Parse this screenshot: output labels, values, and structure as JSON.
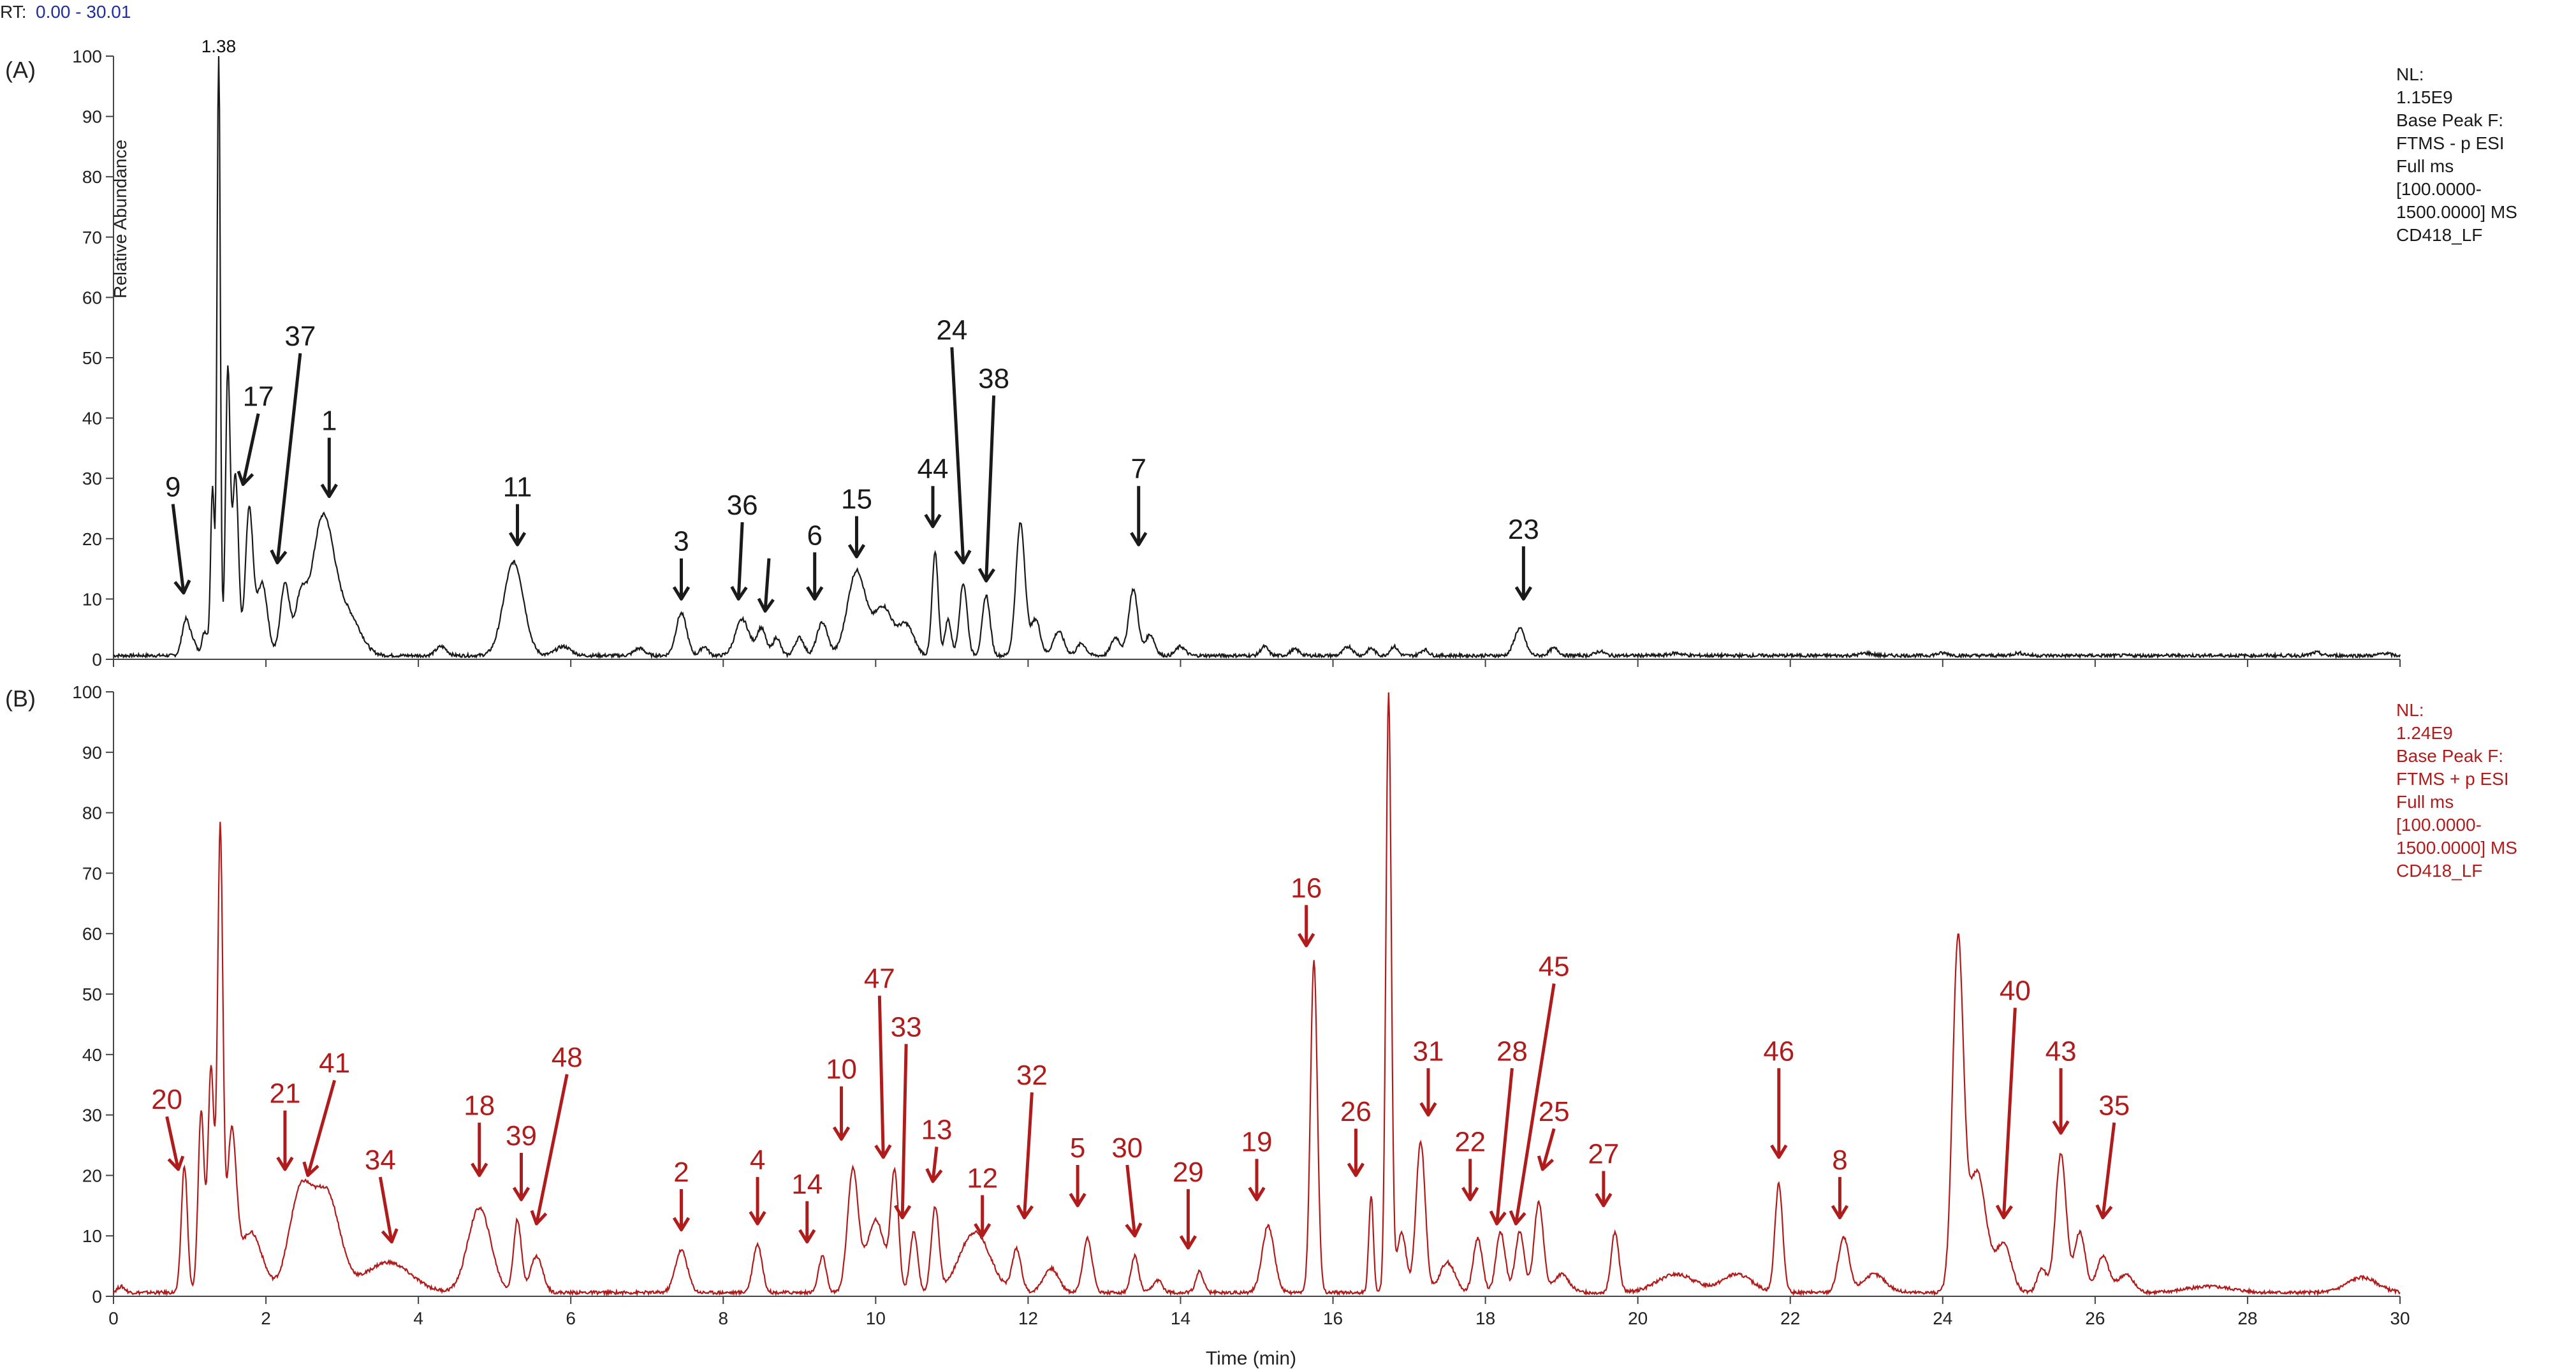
{
  "rt_prefix": "RT:",
  "rt_range": "0.00 - 30.01",
  "xlabel": "Time (min)",
  "ylabel": "Relative Abundance",
  "colors": {
    "a": "#1a1a1a",
    "b": "#b01c1c",
    "rt_range": "#1f2f9e"
  },
  "chart_data": [
    {
      "type": "line",
      "panel": "(A)",
      "xlim": [
        0,
        30
      ],
      "ylim": [
        0,
        100
      ],
      "xticks": [
        0,
        2,
        4,
        6,
        8,
        10,
        12,
        14,
        16,
        18,
        20,
        22,
        24,
        26,
        28,
        30
      ],
      "yticks": [
        0,
        10,
        20,
        30,
        40,
        50,
        60,
        70,
        80,
        90,
        100
      ],
      "base_peak_label": "1.38",
      "info": [
        "NL:",
        "1.15E9",
        "Base Peak F:",
        "FTMS - p ESI",
        "Full ms",
        "[100.0000-",
        "1500.0000]  MS",
        "CD418_LF"
      ],
      "peaks": [
        [
          0.95,
          6,
          0.05
        ],
        [
          1.05,
          2,
          0.04
        ],
        [
          1.2,
          4,
          0.04
        ],
        [
          1.3,
          28,
          0.025
        ],
        [
          1.38,
          100,
          0.022
        ],
        [
          1.5,
          47,
          0.03
        ],
        [
          1.6,
          30,
          0.04
        ],
        [
          1.78,
          24,
          0.05
        ],
        [
          1.95,
          12,
          0.07
        ],
        [
          2.25,
          12,
          0.06
        ],
        [
          2.45,
          8,
          0.07
        ],
        [
          2.75,
          23,
          0.15
        ],
        [
          3.1,
          6,
          0.15
        ],
        [
          4.3,
          1.5,
          0.07
        ],
        [
          5.25,
          15.5,
          0.13
        ],
        [
          5.9,
          1.5,
          0.1
        ],
        [
          6.9,
          1.2,
          0.07
        ],
        [
          7.45,
          7,
          0.07
        ],
        [
          7.75,
          1.5,
          0.05
        ],
        [
          8.25,
          6,
          0.09
        ],
        [
          8.5,
          4.5,
          0.06
        ],
        [
          8.7,
          3,
          0.05
        ],
        [
          9.0,
          3,
          0.06
        ],
        [
          9.3,
          5.5,
          0.07
        ],
        [
          9.75,
          14,
          0.12
        ],
        [
          10.1,
          8,
          0.12
        ],
        [
          10.4,
          5,
          0.1
        ],
        [
          10.78,
          17,
          0.04
        ],
        [
          10.95,
          6,
          0.04
        ],
        [
          11.15,
          12,
          0.05
        ],
        [
          11.45,
          10,
          0.05
        ],
        [
          11.9,
          22,
          0.06
        ],
        [
          12.1,
          6,
          0.06
        ],
        [
          12.4,
          4,
          0.07
        ],
        [
          12.7,
          2,
          0.06
        ],
        [
          13.15,
          3,
          0.06
        ],
        [
          13.38,
          11,
          0.06
        ],
        [
          13.6,
          3.5,
          0.06
        ],
        [
          14.0,
          1.5,
          0.06
        ],
        [
          15.1,
          1.5,
          0.05
        ],
        [
          15.5,
          1,
          0.06
        ],
        [
          16.2,
          1.5,
          0.06
        ],
        [
          16.5,
          1.2,
          0.05
        ],
        [
          16.8,
          1.5,
          0.05
        ],
        [
          17.2,
          1,
          0.05
        ],
        [
          18.45,
          4.5,
          0.07
        ],
        [
          18.9,
          1.2,
          0.06
        ],
        [
          19.5,
          0.7,
          0.06
        ],
        [
          20.5,
          0.4,
          0.08
        ],
        [
          23.0,
          0.4,
          0.08
        ],
        [
          24.0,
          0.4,
          0.08
        ],
        [
          25.0,
          0.4,
          0.08
        ],
        [
          28.9,
          0.5,
          0.06
        ],
        [
          29.8,
          0.4,
          0.06
        ]
      ],
      "annotations": [
        {
          "label": "9",
          "tx": 0.78,
          "ty": 27,
          "ax": 0.92,
          "ay": 11
        },
        {
          "label": "17",
          "tx": 1.9,
          "ty": 42,
          "ax": 1.7,
          "ay": 29
        },
        {
          "label": "37",
          "tx": 2.45,
          "ty": 52,
          "ax": 2.15,
          "ay": 16
        },
        {
          "label": "1",
          "tx": 2.83,
          "ty": 38,
          "ax": 2.83,
          "ay": 27
        },
        {
          "label": "11",
          "tx": 5.3,
          "ty": 27,
          "ax": 5.3,
          "ay": 19
        },
        {
          "label": "3",
          "tx": 7.45,
          "ty": 18,
          "ax": 7.45,
          "ay": 10
        },
        {
          "label": "36",
          "tx": 8.25,
          "ty": 24,
          "ax": 8.2,
          "ay": 10
        },
        {
          "label": "",
          "tx": 8.6,
          "ty": 18,
          "ax": 8.55,
          "ay": 8
        },
        {
          "label": "6",
          "tx": 9.2,
          "ty": 19,
          "ax": 9.2,
          "ay": 10
        },
        {
          "label": "15",
          "tx": 9.75,
          "ty": 25,
          "ax": 9.75,
          "ay": 17
        },
        {
          "label": "44",
          "tx": 10.75,
          "ty": 30,
          "ax": 10.75,
          "ay": 22
        },
        {
          "label": "24",
          "tx": 11.0,
          "ty": 53,
          "ax": 11.15,
          "ay": 16
        },
        {
          "label": "38",
          "tx": 11.55,
          "ty": 45,
          "ax": 11.45,
          "ay": 13
        },
        {
          "label": "7",
          "tx": 13.45,
          "ty": 30,
          "ax": 13.45,
          "ay": 19
        },
        {
          "label": "23",
          "tx": 18.5,
          "ty": 20,
          "ax": 18.5,
          "ay": 10
        }
      ]
    },
    {
      "type": "line",
      "panel": "(B)",
      "xlim": [
        0,
        30
      ],
      "ylim": [
        0,
        100
      ],
      "xticks": [
        0,
        2,
        4,
        6,
        8,
        10,
        12,
        14,
        16,
        18,
        20,
        22,
        24,
        26,
        28,
        30
      ],
      "yticks": [
        0,
        10,
        20,
        30,
        40,
        50,
        60,
        70,
        80,
        90,
        100
      ],
      "info": [
        "NL:",
        "1.24E9",
        "Base Peak F:",
        "FTMS + p ESI",
        "Full ms",
        "[100.0000-",
        "1500.0000]  MS",
        "CD418_LF"
      ],
      "peaks": [
        [
          0.1,
          1,
          0.05
        ],
        [
          0.93,
          21,
          0.04
        ],
        [
          1.15,
          30,
          0.04
        ],
        [
          1.28,
          37,
          0.04
        ],
        [
          1.4,
          76,
          0.035
        ],
        [
          1.55,
          25,
          0.06
        ],
        [
          1.8,
          10,
          0.15
        ],
        [
          2.45,
          16,
          0.15
        ],
        [
          2.8,
          16,
          0.17
        ],
        [
          3.6,
          5,
          0.3
        ],
        [
          4.8,
          14,
          0.15
        ],
        [
          5.3,
          12,
          0.05
        ],
        [
          5.55,
          6,
          0.08
        ],
        [
          7.45,
          7,
          0.08
        ],
        [
          8.45,
          8,
          0.06
        ],
        [
          9.3,
          6,
          0.05
        ],
        [
          9.7,
          20,
          0.07
        ],
        [
          10.0,
          12,
          0.12
        ],
        [
          10.25,
          19,
          0.05
        ],
        [
          10.5,
          10,
          0.05
        ],
        [
          10.78,
          14,
          0.05
        ],
        [
          11.3,
          10,
          0.2
        ],
        [
          11.85,
          7,
          0.06
        ],
        [
          12.3,
          4,
          0.1
        ],
        [
          12.78,
          9,
          0.06
        ],
        [
          13.4,
          6,
          0.05
        ],
        [
          13.7,
          2,
          0.06
        ],
        [
          14.25,
          3.5,
          0.05
        ],
        [
          15.15,
          11,
          0.08
        ],
        [
          15.75,
          55,
          0.045
        ],
        [
          16.5,
          16,
          0.03
        ],
        [
          16.73,
          99,
          0.035
        ],
        [
          16.9,
          10,
          0.06
        ],
        [
          17.15,
          25,
          0.06
        ],
        [
          17.5,
          5,
          0.1
        ],
        [
          17.9,
          9,
          0.06
        ],
        [
          18.2,
          10,
          0.06
        ],
        [
          18.45,
          10,
          0.06
        ],
        [
          18.7,
          15,
          0.06
        ],
        [
          19.0,
          3,
          0.1
        ],
        [
          19.7,
          10,
          0.05
        ],
        [
          20.5,
          3,
          0.25
        ],
        [
          21.3,
          3,
          0.2
        ],
        [
          21.85,
          18,
          0.05
        ],
        [
          22.7,
          9,
          0.07
        ],
        [
          23.1,
          3,
          0.15
        ],
        [
          24.2,
          57,
          0.07
        ],
        [
          24.45,
          20,
          0.12
        ],
        [
          24.8,
          8,
          0.1
        ],
        [
          25.3,
          4,
          0.06
        ],
        [
          25.55,
          23,
          0.07
        ],
        [
          25.8,
          10,
          0.07
        ],
        [
          26.1,
          6,
          0.08
        ],
        [
          26.4,
          3,
          0.1
        ],
        [
          27.5,
          1,
          0.3
        ],
        [
          29.5,
          2.5,
          0.2
        ]
      ],
      "annotations": [
        {
          "label": "20",
          "tx": 0.7,
          "ty": 31,
          "ax": 0.85,
          "ay": 21
        },
        {
          "label": "21",
          "tx": 2.25,
          "ty": 32,
          "ax": 2.25,
          "ay": 21
        },
        {
          "label": "41",
          "tx": 2.9,
          "ty": 37,
          "ax": 2.55,
          "ay": 20
        },
        {
          "label": "34",
          "tx": 3.5,
          "ty": 21,
          "ax": 3.65,
          "ay": 9
        },
        {
          "label": "18",
          "tx": 4.8,
          "ty": 30,
          "ax": 4.8,
          "ay": 20
        },
        {
          "label": "39",
          "tx": 5.35,
          "ty": 25,
          "ax": 5.35,
          "ay": 16
        },
        {
          "label": "48",
          "tx": 5.95,
          "ty": 38,
          "ax": 5.55,
          "ay": 12
        },
        {
          "label": "2",
          "tx": 7.45,
          "ty": 19,
          "ax": 7.45,
          "ay": 11
        },
        {
          "label": "4",
          "tx": 8.45,
          "ty": 21,
          "ax": 8.45,
          "ay": 12
        },
        {
          "label": "14",
          "tx": 9.1,
          "ty": 17,
          "ax": 9.1,
          "ay": 9
        },
        {
          "label": "10",
          "tx": 9.55,
          "ty": 36,
          "ax": 9.55,
          "ay": 26
        },
        {
          "label": "47",
          "tx": 10.05,
          "ty": 51,
          "ax": 10.1,
          "ay": 23
        },
        {
          "label": "33",
          "tx": 10.4,
          "ty": 43,
          "ax": 10.35,
          "ay": 13
        },
        {
          "label": "13",
          "tx": 10.8,
          "ty": 26,
          "ax": 10.75,
          "ay": 19
        },
        {
          "label": "12",
          "tx": 11.4,
          "ty": 18,
          "ax": 11.4,
          "ay": 10
        },
        {
          "label": "32",
          "tx": 12.05,
          "ty": 35,
          "ax": 11.95,
          "ay": 13
        },
        {
          "label": "5",
          "tx": 12.65,
          "ty": 23,
          "ax": 12.65,
          "ay": 15
        },
        {
          "label": "30",
          "tx": 13.3,
          "ty": 23,
          "ax": 13.4,
          "ay": 10
        },
        {
          "label": "29",
          "tx": 14.1,
          "ty": 19,
          "ax": 14.1,
          "ay": 8
        },
        {
          "label": "19",
          "tx": 15.0,
          "ty": 24,
          "ax": 15.0,
          "ay": 16
        },
        {
          "label": "16",
          "tx": 15.65,
          "ty": 66,
          "ax": 15.65,
          "ay": 58
        },
        {
          "label": "26",
          "tx": 16.3,
          "ty": 29,
          "ax": 16.3,
          "ay": 20
        },
        {
          "label": "31",
          "tx": 17.25,
          "ty": 39,
          "ax": 17.25,
          "ay": 30
        },
        {
          "label": "22",
          "tx": 17.8,
          "ty": 24,
          "ax": 17.8,
          "ay": 16
        },
        {
          "label": "28",
          "tx": 18.35,
          "ty": 39,
          "ax": 18.15,
          "ay": 12
        },
        {
          "label": "45",
          "tx": 18.9,
          "ty": 53,
          "ax": 18.4,
          "ay": 12
        },
        {
          "label": "25",
          "tx": 18.9,
          "ty": 29,
          "ax": 18.75,
          "ay": 21
        },
        {
          "label": "27",
          "tx": 19.55,
          "ty": 22,
          "ax": 19.55,
          "ay": 15
        },
        {
          "label": "46",
          "tx": 21.85,
          "ty": 39,
          "ax": 21.85,
          "ay": 23
        },
        {
          "label": "8",
          "tx": 22.65,
          "ty": 21,
          "ax": 22.65,
          "ay": 13
        },
        {
          "label": "40",
          "tx": 24.95,
          "ty": 49,
          "ax": 24.8,
          "ay": 13
        },
        {
          "label": "43",
          "tx": 25.55,
          "ty": 39,
          "ax": 25.55,
          "ay": 27
        },
        {
          "label": "35",
          "tx": 26.25,
          "ty": 30,
          "ax": 26.1,
          "ay": 13
        }
      ]
    }
  ]
}
